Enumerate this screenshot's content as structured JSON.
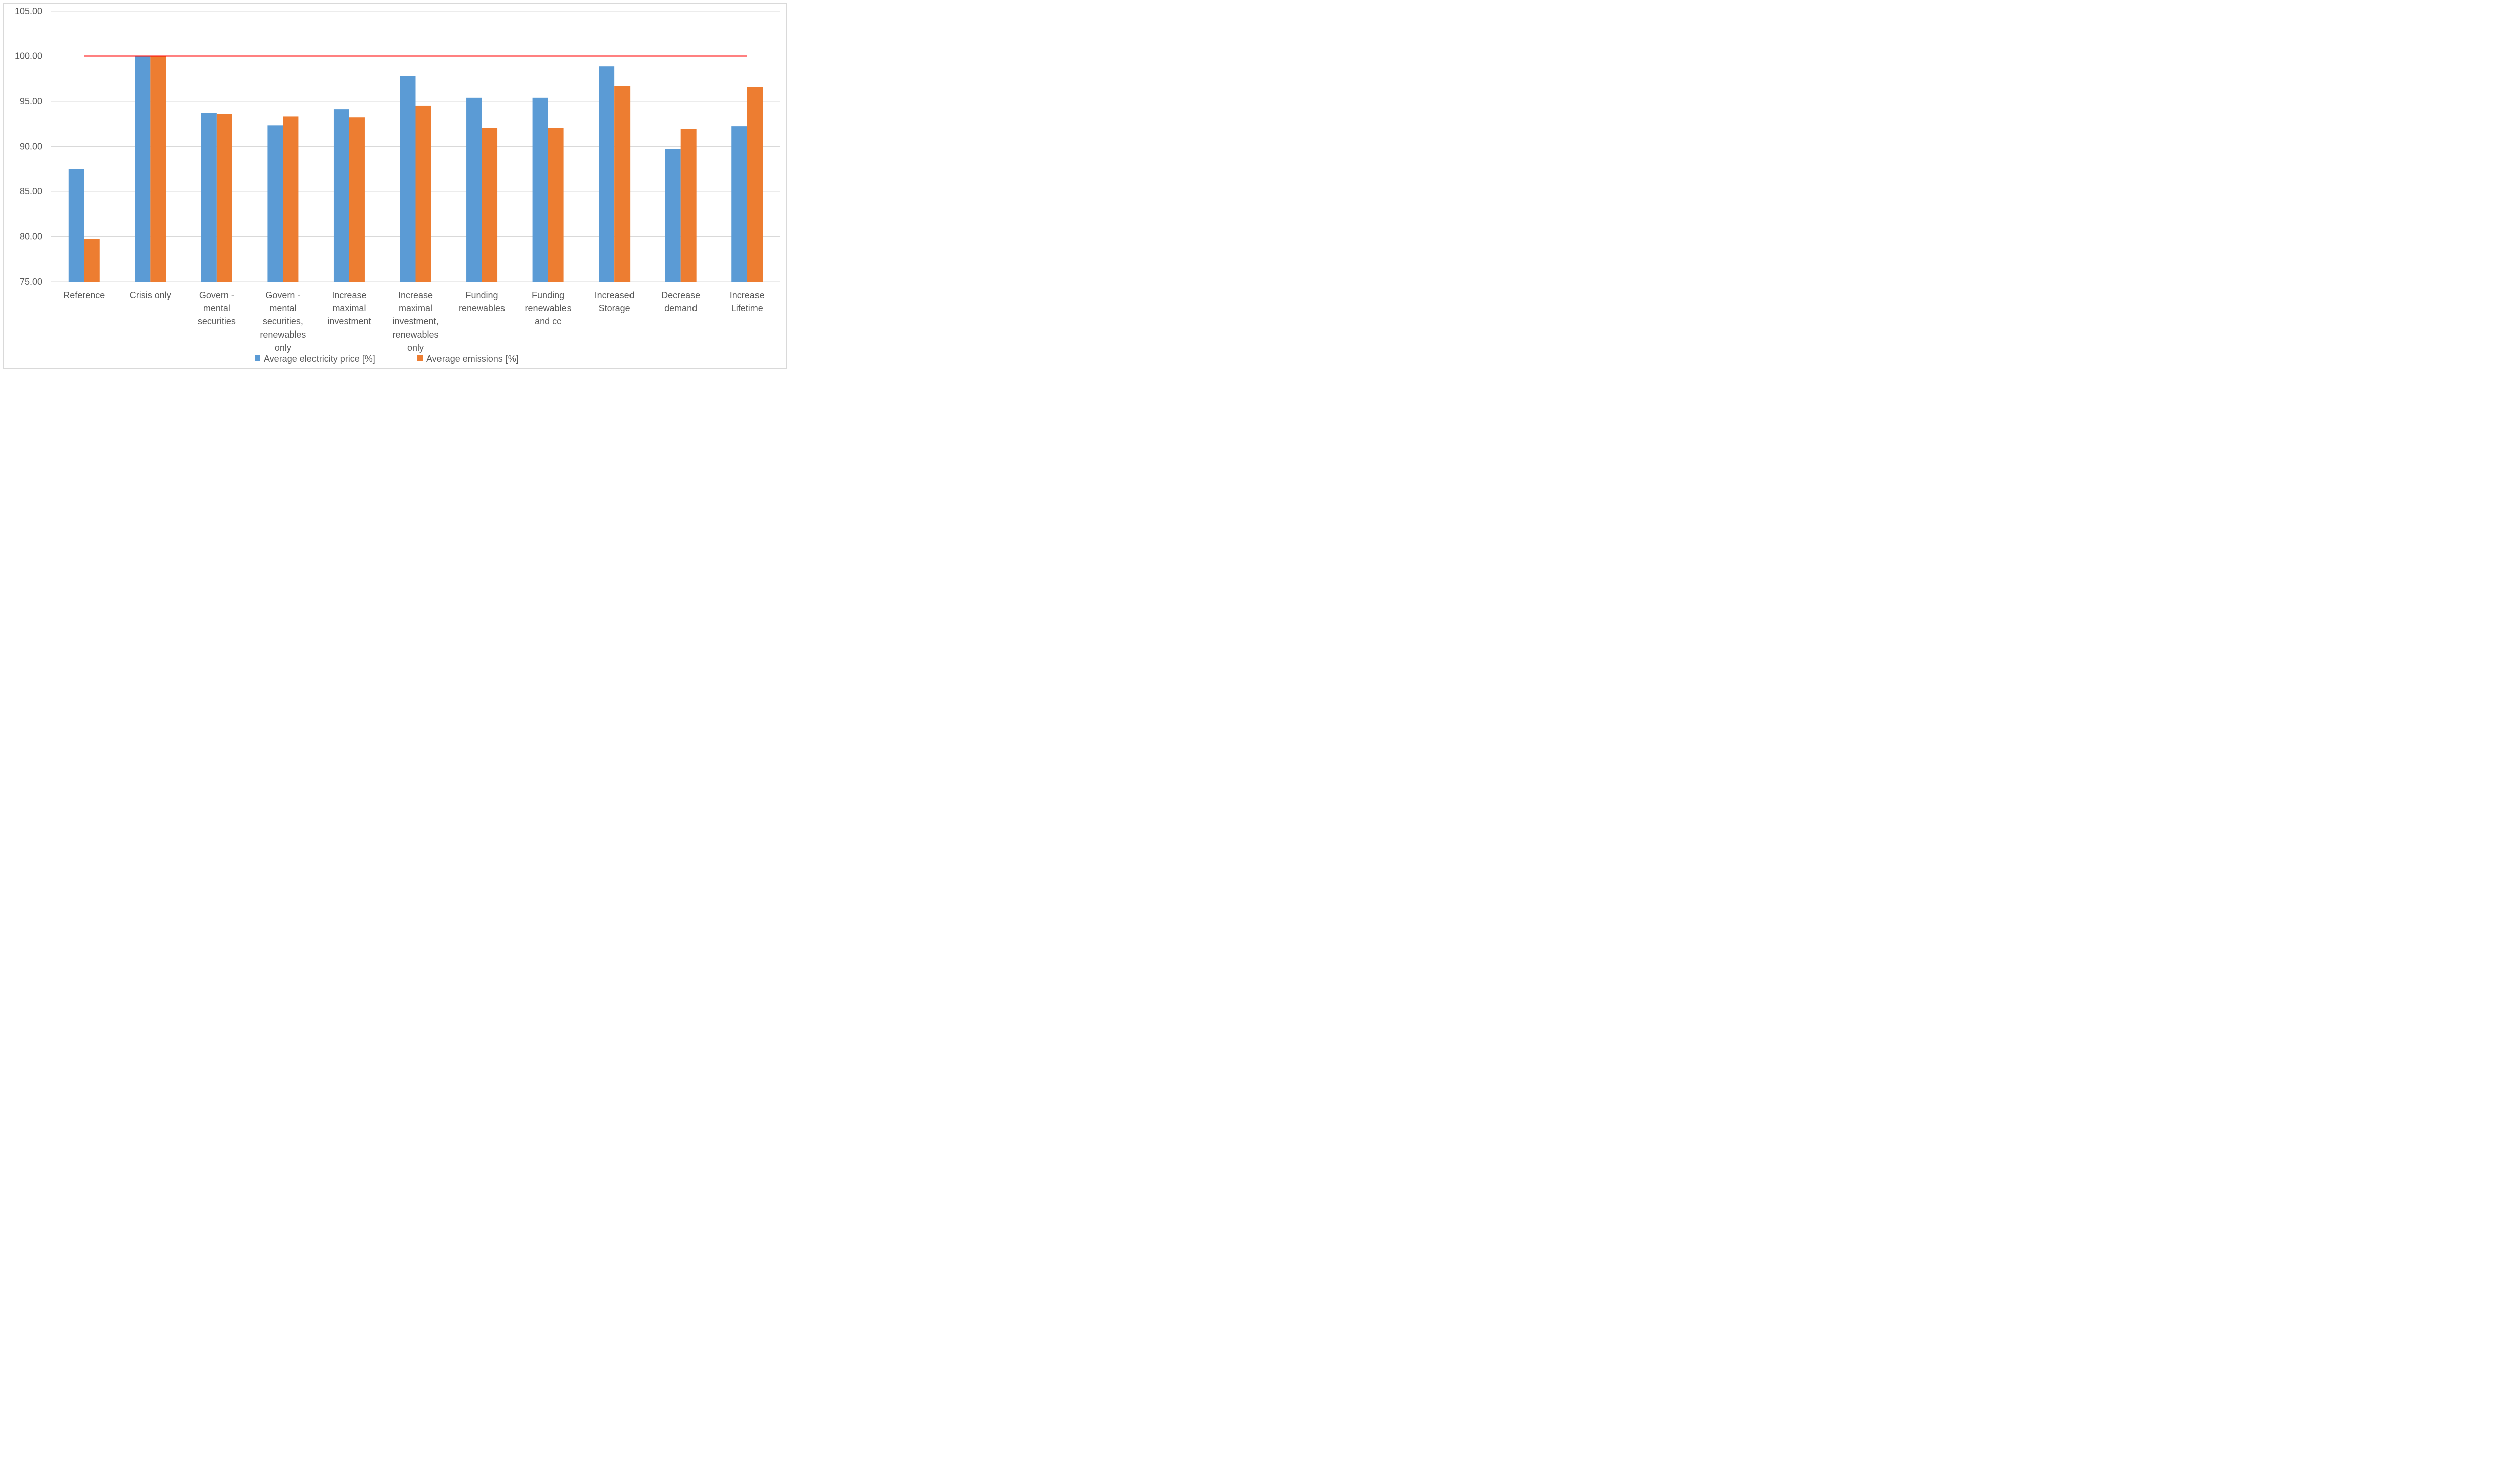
{
  "chart_data": {
    "type": "bar",
    "categories": [
      [
        "Reference"
      ],
      [
        "Crisis only"
      ],
      [
        "Govern -",
        "mental",
        "securities"
      ],
      [
        "Govern -",
        "mental",
        "securities,",
        "renewables",
        "only"
      ],
      [
        "Increase",
        "maximal",
        "investment"
      ],
      [
        "Increase",
        "maximal",
        "investment,",
        "renewables",
        "only"
      ],
      [
        "Funding",
        "renewables"
      ],
      [
        "Funding",
        "renewables",
        "and cc"
      ],
      [
        "Increased",
        "Storage"
      ],
      [
        "Decrease",
        "demand"
      ],
      [
        "Increase",
        "Lifetime"
      ]
    ],
    "series": [
      {
        "name": "Average electricity price [%]",
        "color": "#5b9bd5",
        "values": [
          87.5,
          100.0,
          93.7,
          92.3,
          94.1,
          97.8,
          95.4,
          95.4,
          98.9,
          89.7,
          92.2
        ]
      },
      {
        "name": "Average emissions [%]",
        "color": "#ed7d31",
        "values": [
          79.7,
          100.0,
          93.6,
          93.3,
          93.2,
          94.5,
          92.0,
          92.0,
          96.7,
          91.9,
          96.6
        ]
      }
    ],
    "yticks": [
      "75.00",
      "80.00",
      "85.00",
      "90.00",
      "95.00",
      "100.00",
      "105.00"
    ],
    "ylim": [
      75,
      105
    ],
    "reference_line": {
      "value": 100,
      "color": "#ff0000"
    },
    "grid": true,
    "legend_position": "bottom",
    "title": "",
    "xlabel": "",
    "ylabel": ""
  }
}
